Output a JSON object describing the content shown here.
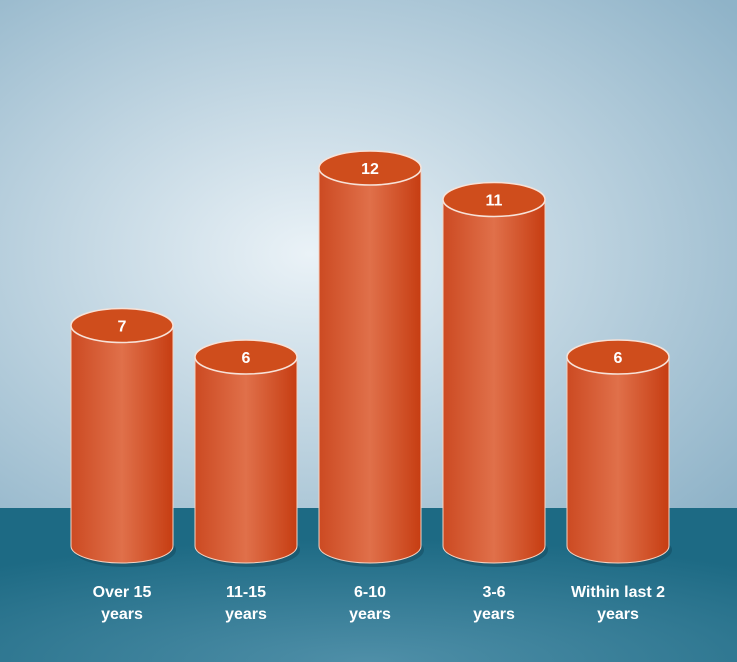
{
  "colors": {
    "bar_main": "#e0704a",
    "bar_edge": "#cc4a22",
    "bar_top": "#cf4d1c",
    "floor": "#1d6a84",
    "backdrop_light": "#eaf2f7",
    "backdrop_dark": "#8fb3c8",
    "text": "#ffffff"
  },
  "chart_data": {
    "type": "bar",
    "style": "3d-cylinder",
    "categories": [
      [
        "Over 15",
        "years"
      ],
      [
        "11-15",
        "years"
      ],
      [
        "6-10",
        "years"
      ],
      [
        "3-6",
        "years"
      ],
      [
        "Within last 2",
        "years"
      ]
    ],
    "values": [
      7,
      6,
      12,
      11,
      6
    ],
    "value_labels": [
      "7",
      "6",
      "12",
      "11",
      "6"
    ],
    "ylim": [
      0,
      12
    ],
    "grid": false,
    "legend": "none"
  }
}
